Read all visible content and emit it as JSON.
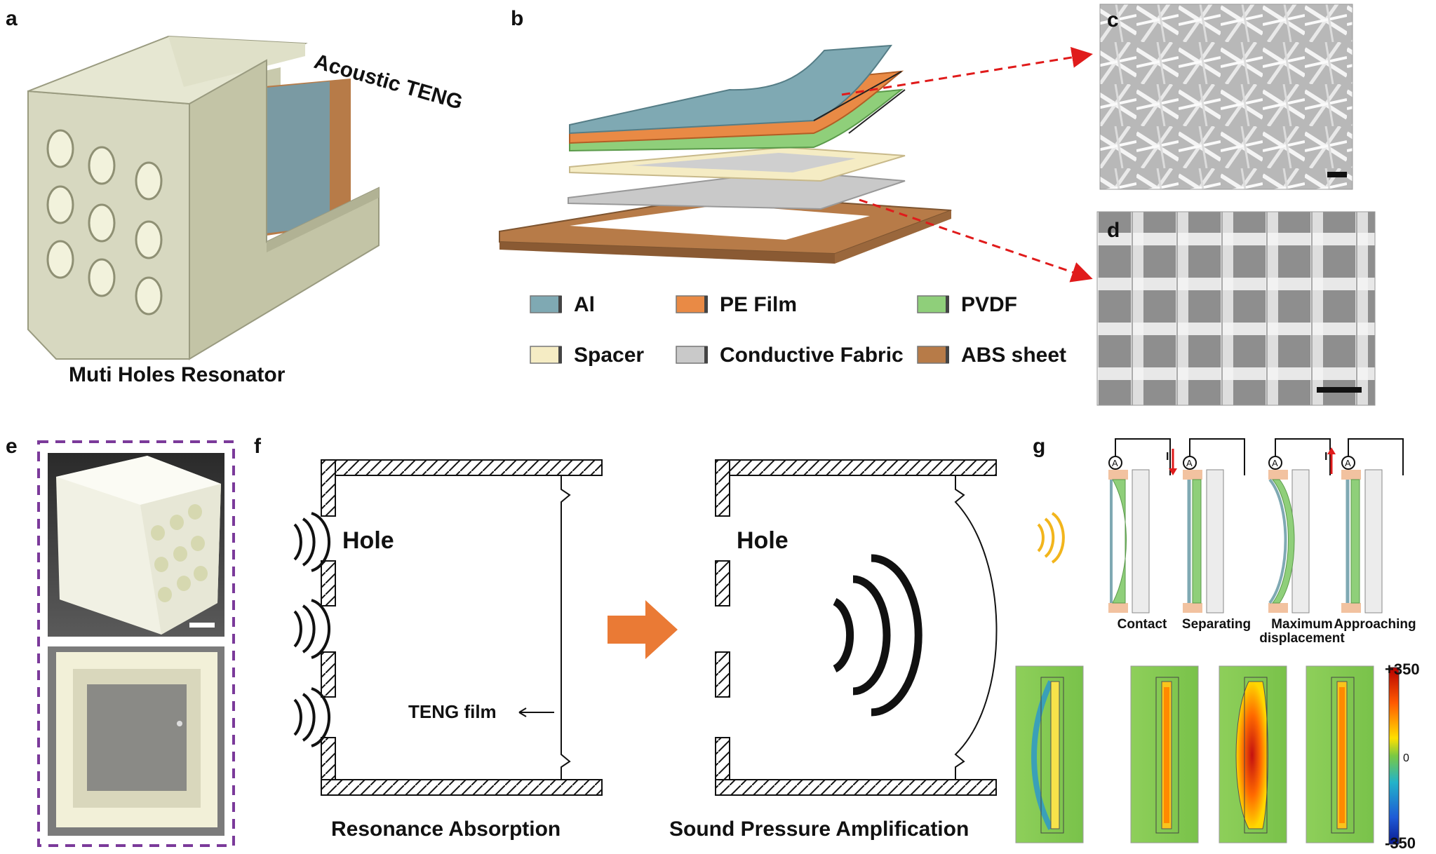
{
  "panels": {
    "a": "a",
    "b": "b",
    "c": "c",
    "d": "d",
    "e": "e",
    "f": "f",
    "g": "g"
  },
  "panel_a": {
    "teng_label": "Acoustic TENG",
    "resonator_label": "Muti Holes Resonator"
  },
  "legend": [
    {
      "label": "Al",
      "color": "#7fa9b3"
    },
    {
      "label": "PE Film",
      "color": "#e98a45"
    },
    {
      "label": "PVDF",
      "color": "#8fcf7a"
    },
    {
      "label": "Spacer",
      "color": "#f5ecc4"
    },
    {
      "label": "Conductive Fabric",
      "color": "#c9c9c9"
    },
    {
      "label": "ABS sheet",
      "color": "#b77b48"
    }
  ],
  "panel_f": {
    "hole_label_1": "Hole",
    "hole_label_2": "Hole",
    "film_label": "TENG film",
    "caption_left": "Resonance Absorption",
    "caption_right": "Sound Pressure Amplification",
    "arrow_color": "#ea7a35"
  },
  "panel_g": {
    "stages": [
      "Contact",
      "Separating",
      "Maximum",
      "Approaching"
    ],
    "stage3_line2": "displacement",
    "meter_symbol": "A",
    "current_symbol": "I",
    "colorbar": {
      "max": "+350",
      "mid": "0",
      "min": "-350"
    }
  }
}
